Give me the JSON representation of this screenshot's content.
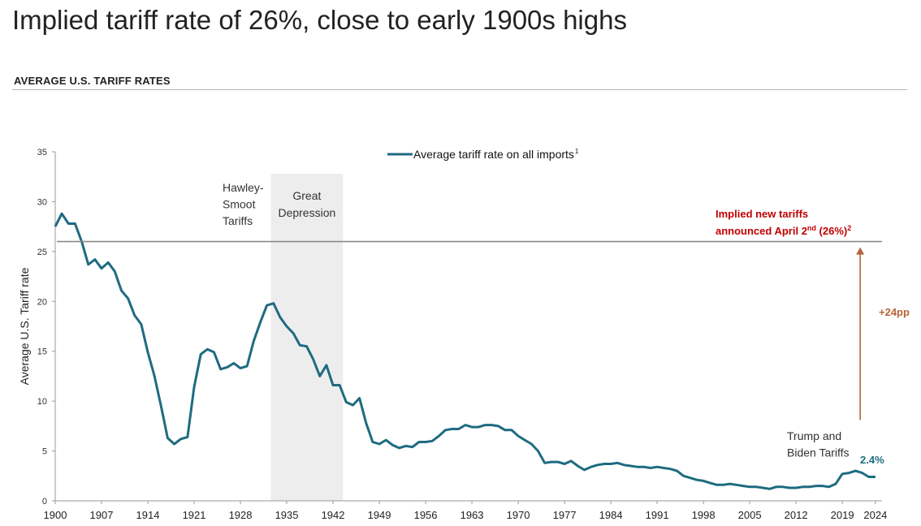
{
  "page": {
    "title": "Implied tariff rate of 26%, close to early 1900s highs",
    "section_title": "AVERAGE U.S. TARIFF RATES"
  },
  "colors": {
    "series": "#1e6b80",
    "reference_line": "#8a8a8a",
    "shading": "#ededed",
    "implied_label": "#c00000",
    "arrow": "#b5653a"
  },
  "chart_data": {
    "type": "line",
    "title": "Average U.S. Tariff Rates",
    "xlabel": "",
    "ylabel": "Average U.S. Tariff rate",
    "xlim": [
      1900,
      2025
    ],
    "ylim": [
      0,
      35
    ],
    "x_ticks": [
      1900,
      1907,
      1914,
      1921,
      1928,
      1935,
      1942,
      1949,
      1956,
      1963,
      1970,
      1977,
      1984,
      1991,
      1998,
      2005,
      2012,
      2019,
      2024
    ],
    "y_ticks": [
      0,
      5,
      10,
      15,
      20,
      25,
      30,
      35
    ],
    "legend": {
      "label": "Average tariff rate on all imports",
      "superscript": "1",
      "position": "top-center"
    },
    "series": [
      {
        "name": "Average tariff rate on all imports",
        "x": [
          1900,
          1901,
          1902,
          1903,
          1904,
          1905,
          1906,
          1907,
          1908,
          1909,
          1910,
          1911,
          1912,
          1913,
          1914,
          1915,
          1916,
          1917,
          1918,
          1919,
          1920,
          1921,
          1922,
          1923,
          1924,
          1925,
          1926,
          1927,
          1928,
          1929,
          1930,
          1931,
          1932,
          1933,
          1934,
          1935,
          1936,
          1937,
          1938,
          1939,
          1940,
          1941,
          1942,
          1943,
          1944,
          1945,
          1946,
          1947,
          1948,
          1949,
          1950,
          1951,
          1952,
          1953,
          1954,
          1955,
          1956,
          1957,
          1958,
          1959,
          1960,
          1961,
          1962,
          1963,
          1964,
          1965,
          1966,
          1967,
          1968,
          1969,
          1970,
          1971,
          1972,
          1973,
          1974,
          1975,
          1976,
          1977,
          1978,
          1979,
          1980,
          1981,
          1982,
          1983,
          1984,
          1985,
          1986,
          1987,
          1988,
          1989,
          1990,
          1991,
          1992,
          1993,
          1994,
          1995,
          1996,
          1997,
          1998,
          1999,
          2000,
          2001,
          2002,
          2003,
          2004,
          2005,
          2006,
          2007,
          2008,
          2009,
          2010,
          2011,
          2012,
          2013,
          2014,
          2015,
          2016,
          2017,
          2018,
          2019,
          2020,
          2021,
          2022,
          2023,
          2024
        ],
        "values": [
          27.5,
          28.8,
          27.8,
          27.8,
          26.0,
          23.7,
          24.2,
          23.3,
          23.9,
          23.0,
          21.1,
          20.3,
          18.6,
          17.7,
          14.9,
          12.5,
          9.5,
          6.3,
          5.7,
          6.2,
          6.4,
          11.4,
          14.7,
          15.2,
          14.9,
          13.2,
          13.4,
          13.8,
          13.3,
          13.5,
          16.0,
          17.9,
          19.6,
          19.8,
          18.4,
          17.5,
          16.8,
          15.6,
          15.5,
          14.2,
          12.5,
          13.6,
          11.6,
          11.6,
          9.9,
          9.6,
          10.3,
          7.8,
          5.9,
          5.7,
          6.1,
          5.6,
          5.3,
          5.5,
          5.4,
          5.9,
          5.9,
          6.0,
          6.5,
          7.1,
          7.2,
          7.2,
          7.6,
          7.4,
          7.4,
          7.6,
          7.6,
          7.5,
          7.1,
          7.1,
          6.5,
          6.1,
          5.7,
          5.0,
          3.8,
          3.9,
          3.9,
          3.7,
          4.0,
          3.5,
          3.1,
          3.4,
          3.6,
          3.7,
          3.7,
          3.8,
          3.6,
          3.5,
          3.4,
          3.4,
          3.3,
          3.4,
          3.3,
          3.2,
          3.0,
          2.5,
          2.3,
          2.1,
          2.0,
          1.8,
          1.6,
          1.6,
          1.7,
          1.6,
          1.5,
          1.4,
          1.4,
          1.3,
          1.2,
          1.4,
          1.4,
          1.3,
          1.3,
          1.4,
          1.4,
          1.5,
          1.5,
          1.4,
          1.7,
          2.7,
          2.8,
          3.0,
          2.8,
          2.4,
          2.4
        ]
      }
    ],
    "reference_line": {
      "value": 26,
      "label_line1": "Implied new tariffs",
      "label_line2_prefix": "announced April 2",
      "label_line2_sup": "nd",
      "label_line2_suffix": " (26%)",
      "label_line2_note": "2"
    },
    "shaded_region": {
      "x_start": 1932.6,
      "x_end": 1943.5,
      "label_line1": "Great",
      "label_line2": "Depression"
    },
    "annotations": {
      "hawley_smoot": [
        "Hawley-",
        "Smoot",
        "Tariffs"
      ],
      "trump_biden": [
        "Trump and",
        "Biden Tariffs"
      ],
      "latest_value_label": "2.4%",
      "arrow_label": "+24pp",
      "arrow_x": 2021.7,
      "arrow_from": 2.4,
      "arrow_to": 26
    }
  }
}
